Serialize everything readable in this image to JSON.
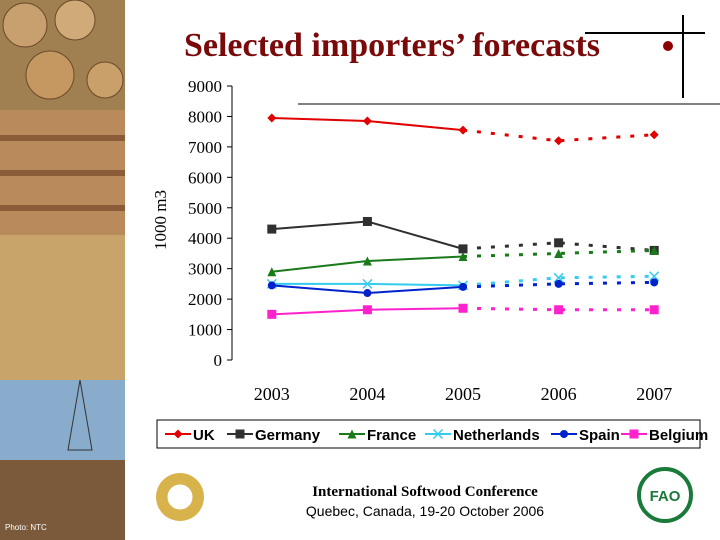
{
  "chart_data": {
    "type": "line",
    "title": "Selected importers’ forecasts",
    "y_label": "1000 m3",
    "categories": [
      "2003",
      "2004",
      "2005",
      "2006",
      "2007"
    ],
    "dashed_from_index": 2,
    "ylim": [
      0,
      9000
    ],
    "yticks": [
      0,
      1000,
      2000,
      3000,
      4000,
      5000,
      6000,
      7000,
      8000,
      9000
    ],
    "series": [
      {
        "name": "UK",
        "color": "#e00000",
        "marker": "diamond",
        "values": [
          7950,
          7850,
          7550,
          7200,
          7400
        ]
      },
      {
        "name": "Germany",
        "color": "#303030",
        "marker": "square",
        "values": [
          4300,
          4550,
          3650,
          3850,
          3600
        ]
      },
      {
        "name": "France",
        "color": "#1a7a1a",
        "marker": "triangle",
        "values": [
          2900,
          3250,
          3400,
          3500,
          3600
        ]
      },
      {
        "name": "Netherlands",
        "color": "#33ccee",
        "marker": "x",
        "values": [
          2500,
          2500,
          2450,
          2700,
          2750
        ]
      },
      {
        "name": "Spain",
        "color": "#0022cc",
        "marker": "circle",
        "values": [
          2450,
          2200,
          2400,
          2500,
          2550
        ]
      },
      {
        "name": "Belgium",
        "color": "#ff22cc",
        "marker": "square",
        "values": [
          1500,
          1650,
          1700,
          1650,
          1650
        ]
      }
    ]
  },
  "footer": {
    "conference": "International Softwood Conference",
    "place": "Quebec, Canada, 19-20 October 2006",
    "photo_credit": "Photo: NTC"
  }
}
